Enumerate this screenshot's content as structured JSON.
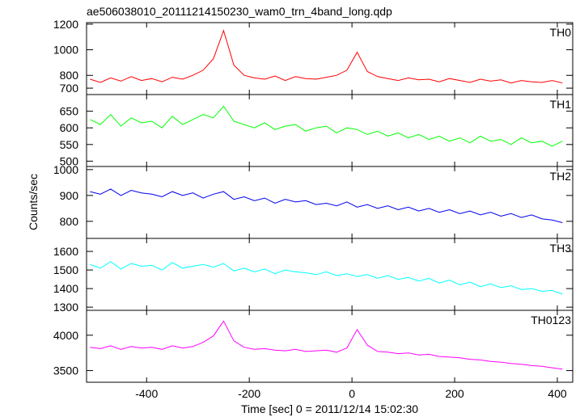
{
  "chart_data": [
    {
      "type": "line",
      "title": "ae506038010_20111214150230_wam0_trn_4band_long.qdp",
      "label": "TH0",
      "color": "#ff0000",
      "x": [
        -510,
        -490,
        -470,
        -450,
        -430,
        -410,
        -390,
        -370,
        -350,
        -330,
        -310,
        -290,
        -270,
        -250,
        -230,
        -210,
        -190,
        -170,
        -150,
        -130,
        -110,
        -90,
        -70,
        -50,
        -30,
        -10,
        10,
        30,
        50,
        70,
        90,
        110,
        130,
        150,
        170,
        190,
        210,
        230,
        250,
        270,
        290,
        310,
        330,
        350,
        370,
        390,
        410
      ],
      "values": [
        770,
        745,
        780,
        755,
        790,
        760,
        775,
        750,
        785,
        770,
        800,
        840,
        930,
        1150,
        880,
        800,
        780,
        770,
        795,
        760,
        790,
        775,
        770,
        785,
        800,
        840,
        980,
        830,
        790,
        775,
        760,
        780,
        765,
        770,
        750,
        775,
        760,
        745,
        770,
        755,
        765,
        740,
        760,
        750,
        745,
        760,
        740
      ],
      "xlim": [
        -517,
        430
      ],
      "xticks": [
        -400,
        -200,
        0,
        200,
        400
      ],
      "ylim": [
        650,
        1212
      ],
      "yticks": [
        700,
        800,
        1000,
        1200
      ]
    },
    {
      "type": "line",
      "label": "TH1",
      "color": "#00ff00",
      "x": [
        -510,
        -490,
        -470,
        -450,
        -430,
        -410,
        -390,
        -370,
        -350,
        -330,
        -310,
        -290,
        -270,
        -250,
        -230,
        -210,
        -190,
        -170,
        -150,
        -130,
        -110,
        -90,
        -70,
        -50,
        -30,
        -10,
        10,
        30,
        50,
        70,
        90,
        110,
        130,
        150,
        170,
        190,
        210,
        230,
        250,
        270,
        290,
        310,
        330,
        350,
        370,
        390,
        410
      ],
      "values": [
        625,
        610,
        640,
        605,
        630,
        615,
        620,
        600,
        635,
        610,
        625,
        640,
        630,
        665,
        620,
        610,
        600,
        615,
        595,
        605,
        610,
        590,
        600,
        605,
        585,
        600,
        595,
        580,
        590,
        575,
        585,
        570,
        580,
        565,
        575,
        560,
        570,
        555,
        575,
        560,
        565,
        550,
        570,
        555,
        560,
        545,
        560
      ],
      "xlim": [
        -517,
        430
      ],
      "xticks": [
        -400,
        -200,
        0,
        200,
        400
      ],
      "ylim": [
        484,
        700
      ],
      "yticks": [
        500,
        550,
        600,
        650
      ]
    },
    {
      "type": "line",
      "label": "TH2",
      "color": "#0000ee",
      "ylabel": "Counts/sec",
      "x": [
        -510,
        -490,
        -470,
        -450,
        -430,
        -410,
        -390,
        -370,
        -350,
        -330,
        -310,
        -290,
        -270,
        -250,
        -230,
        -210,
        -190,
        -170,
        -150,
        -130,
        -110,
        -90,
        -70,
        -50,
        -30,
        -10,
        10,
        30,
        50,
        70,
        90,
        110,
        130,
        150,
        170,
        190,
        210,
        230,
        250,
        270,
        290,
        310,
        330,
        350,
        370,
        390,
        410
      ],
      "values": [
        915,
        905,
        925,
        900,
        920,
        910,
        905,
        895,
        915,
        900,
        910,
        890,
        905,
        915,
        885,
        895,
        880,
        890,
        870,
        885,
        875,
        880,
        865,
        870,
        860,
        875,
        855,
        865,
        850,
        860,
        845,
        855,
        840,
        850,
        835,
        845,
        830,
        840,
        825,
        835,
        820,
        830,
        815,
        825,
        810,
        805,
        795
      ],
      "xlim": [
        -517,
        430
      ],
      "xticks": [
        -400,
        -200,
        0,
        200,
        400
      ],
      "ylim": [
        734,
        1012
      ],
      "yticks": [
        800,
        900,
        1000
      ]
    },
    {
      "type": "line",
      "label": "TH3",
      "color": "#00ffff",
      "x": [
        -510,
        -490,
        -470,
        -450,
        -430,
        -410,
        -390,
        -370,
        -350,
        -330,
        -310,
        -290,
        -270,
        -250,
        -230,
        -210,
        -190,
        -170,
        -150,
        -130,
        -110,
        -90,
        -70,
        -50,
        -30,
        -10,
        10,
        30,
        50,
        70,
        90,
        110,
        130,
        150,
        170,
        190,
        210,
        230,
        250,
        270,
        290,
        310,
        330,
        350,
        370,
        390,
        410
      ],
      "values": [
        1530,
        1510,
        1545,
        1505,
        1535,
        1520,
        1525,
        1500,
        1540,
        1510,
        1520,
        1530,
        1515,
        1535,
        1495,
        1510,
        1490,
        1505,
        1480,
        1500,
        1490,
        1485,
        1475,
        1490,
        1470,
        1480,
        1465,
        1475,
        1455,
        1470,
        1450,
        1460,
        1440,
        1455,
        1430,
        1445,
        1420,
        1435,
        1410,
        1425,
        1405,
        1415,
        1395,
        1400,
        1385,
        1390,
        1370
      ],
      "xlim": [
        -517,
        430
      ],
      "xticks": [
        -400,
        -200,
        0,
        200,
        400
      ],
      "ylim": [
        1283,
        1670
      ],
      "yticks": [
        1300,
        1400,
        1500,
        1600
      ]
    },
    {
      "type": "line",
      "label": "TH0123",
      "color": "#ff00ff",
      "xlabel": "Time [sec] 0 = 2011/12/14 15:02:30",
      "x": [
        -510,
        -490,
        -470,
        -450,
        -430,
        -410,
        -390,
        -370,
        -350,
        -330,
        -310,
        -290,
        -270,
        -250,
        -230,
        -210,
        -190,
        -170,
        -150,
        -130,
        -110,
        -90,
        -70,
        -50,
        -30,
        -10,
        10,
        30,
        50,
        70,
        90,
        110,
        130,
        150,
        170,
        190,
        210,
        230,
        250,
        270,
        290,
        310,
        330,
        350,
        370,
        390,
        410
      ],
      "values": [
        3830,
        3810,
        3850,
        3800,
        3840,
        3820,
        3830,
        3800,
        3850,
        3820,
        3840,
        3900,
        3990,
        4200,
        3920,
        3830,
        3800,
        3810,
        3790,
        3780,
        3800,
        3770,
        3780,
        3790,
        3760,
        3820,
        4080,
        3860,
        3770,
        3760,
        3740,
        3750,
        3720,
        3730,
        3700,
        3690,
        3680,
        3660,
        3650,
        3630,
        3620,
        3600,
        3590,
        3570,
        3560,
        3540,
        3520
      ],
      "xlim": [
        -517,
        430
      ],
      "xticks": [
        -400,
        -200,
        0,
        200,
        400
      ],
      "ylim": [
        3335,
        4352
      ],
      "yticks": [
        3500,
        4000
      ]
    }
  ]
}
